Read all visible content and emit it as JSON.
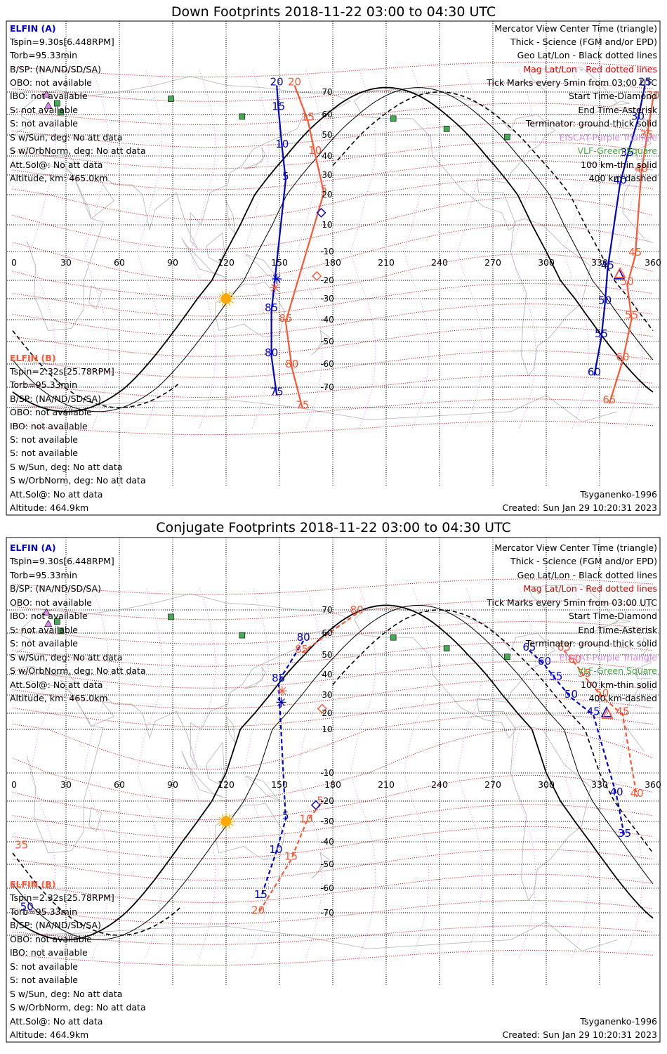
{
  "colors": {
    "elfin_a": "#0000cc",
    "elfin_b": "#ff5533",
    "mag_grid": "#dd0000",
    "eiscat": "#dd88ee",
    "vlf": "#44aa44",
    "coast": "#bbbbbb",
    "sun": "#ffaa00",
    "station_fill": "#44aa55"
  },
  "icons": [
    "sun-icon",
    "diamond-marker-icon",
    "asterisk-marker-icon",
    "triangle-marker-icon",
    "station-square-icon"
  ],
  "common": {
    "axis_x_ticks": [
      "0",
      "30",
      "60",
      "90",
      "120",
      "150",
      "180",
      "210",
      "240",
      "270",
      "300",
      "330",
      "360"
    ],
    "lat_labels": [
      "70",
      "60",
      "50",
      "40",
      "30",
      "20",
      "10",
      "-10",
      "-20",
      "-30",
      "-40",
      "-50",
      "-60",
      "-70"
    ],
    "legend": [
      {
        "text": "Mercator View Center Time (triangle)",
        "color": "#000000"
      },
      {
        "text": "Thick - Science (FGM and/or EPD)",
        "color": "#000000"
      },
      {
        "text": "Geo Lat/Lon - Black dotted lines",
        "color": "#000000"
      },
      {
        "text": "Mag Lat/Lon - Red dotted lines",
        "color": "#dd0000"
      },
      {
        "text": "Tick Marks every 5min from 03:00 UTC",
        "color": "#000000"
      },
      {
        "text": "Start Time-Diamond",
        "color": "#000000"
      },
      {
        "text": "End Time-Asterisk",
        "color": "#000000"
      },
      {
        "text": "Terminator: ground-thick solid",
        "color": "#000000"
      },
      {
        "text": "EISCAT-Purple Triangle",
        "color": "#dd88ee"
      },
      {
        "text": "VLF-Green Square",
        "color": "#44aa44"
      },
      {
        "text": "100 km-thin solid",
        "color": "#000000"
      },
      {
        "text": "400 km-dashed",
        "color": "#000000"
      }
    ],
    "elfin_a": {
      "name": "ELFIN (A)",
      "lines": [
        "Tspin=9.30s[6.448RPM]",
        "Torb=95.33min",
        "B/SP: (NA/ND/SD/SA)",
        "OBO: not available",
        "IBO: not available",
        "S: not available",
        "S: not available",
        "S w/Sun, deg: No att data",
        "S w/OrbNorm, deg: No att data",
        "Att.Sol@: No att data",
        "Altitude, km: 465.0km"
      ]
    },
    "elfin_b": {
      "name": "ELFIN (B)",
      "lines": [
        "Tspin=2.32s[25.78RPM]",
        "Torb=95.33min",
        "B/SP: (NA/ND/SD/SA)",
        "OBO: not available",
        "IBO: not available",
        "S: not available",
        "S: not available",
        "S w/Sun, deg: No att data",
        "S w/OrbNorm, deg: No att data",
        "Att.Sol@: No att data",
        "Altitude: 464.9km"
      ]
    },
    "model": "Tsyganenko-1996",
    "created": "Created: Sun Jan 29 10:20:31 2023"
  },
  "panels": [
    {
      "title": "Down Footprints 2018-11-22 03:00 to 04:30 UTC",
      "ticks_a": [
        {
          "t": "20",
          "lon": 148.5,
          "lat": 73.0
        },
        {
          "t": "15",
          "lon": 149.5,
          "lat": 62.0
        },
        {
          "t": "10",
          "lon": 151.5,
          "lat": 44.0
        },
        {
          "t": "5",
          "lon": 153.5,
          "lat": 27.5
        },
        {
          "t": "85",
          "lon": 145.5,
          "lat": -26.0
        },
        {
          "t": "80",
          "lon": 145.5,
          "lat": -46.5
        },
        {
          "t": "75",
          "lon": 148.5,
          "lat": -64.0
        },
        {
          "t": "25",
          "lon": 355.5,
          "lat": 73.0
        },
        {
          "t": "30",
          "lon": 351.5,
          "lat": 57.5
        },
        {
          "t": "35",
          "lon": 345.5,
          "lat": 40.0
        },
        {
          "t": "40",
          "lon": 341.5,
          "lat": 25.5
        },
        {
          "t": "45",
          "lon": 334.5,
          "lat": -6.0
        },
        {
          "t": "50",
          "lon": 333.0,
          "lat": -22.5
        },
        {
          "t": "55",
          "lon": 331.0,
          "lat": -38.0
        },
        {
          "t": "60",
          "lon": 327.0,
          "lat": -55.0
        }
      ],
      "ticks_b": [
        {
          "t": "20",
          "lon": 158.5,
          "lat": 73.0
        },
        {
          "t": "15",
          "lon": 166.0,
          "lat": 57.0
        },
        {
          "t": "10",
          "lon": 170.0,
          "lat": 41.0
        },
        {
          "t": "5",
          "lon": 175.0,
          "lat": 21.0
        },
        {
          "t": "85",
          "lon": 153.5,
          "lat": -31.0
        },
        {
          "t": "80",
          "lon": 157.0,
          "lat": -51.5
        },
        {
          "t": "75",
          "lon": 163.0,
          "lat": -70.5
        },
        {
          "t": "30",
          "lon": 360.0,
          "lat": 67.0
        },
        {
          "t": "35",
          "lon": 356.5,
          "lat": 48.5
        },
        {
          "t": "40",
          "lon": 353.5,
          "lat": 31.5
        },
        {
          "t": "45",
          "lon": 350.0,
          "lat": -1.5
        },
        {
          "t": "50",
          "lon": 345.5,
          "lat": -12.5
        },
        {
          "t": "55",
          "lon": 348.0,
          "lat": -29.5
        },
        {
          "t": "60",
          "lon": 343.0,
          "lat": -48.5
        },
        {
          "t": "65",
          "lon": 335.5,
          "lat": -68.0
        }
      ]
    },
    {
      "title": "Conjugate Footprints 2018-11-22 03:00 to 04:30 UTC",
      "ticks_a": [
        {
          "t": "80",
          "lon": 163.5,
          "lat": 56.5
        },
        {
          "t": "85",
          "lon": 149.5,
          "lat": 36.5
        },
        {
          "t": "5",
          "lon": 153.5,
          "lat": -19.0
        },
        {
          "t": "10",
          "lon": 148.0,
          "lat": -35.0
        },
        {
          "t": "15",
          "lon": 139.5,
          "lat": -54.0
        },
        {
          "t": "65",
          "lon": 290.5,
          "lat": 52.0
        },
        {
          "t": "60",
          "lon": 299.0,
          "lat": 45.0
        },
        {
          "t": "55",
          "lon": 305.5,
          "lat": 37.5
        },
        {
          "t": "50",
          "lon": 314.0,
          "lat": 28.5
        },
        {
          "t": "45",
          "lon": 326.5,
          "lat": 19.0
        },
        {
          "t": "40",
          "lon": 339.5,
          "lat": -8.0
        },
        {
          "t": "35",
          "lon": 344.0,
          "lat": -27.5
        },
        {
          "t": "50",
          "lon": 8.0,
          "lat": -59.0
        }
      ],
      "ticks_b": [
        {
          "t": "80",
          "lon": 193.5,
          "lat": 68.5
        },
        {
          "t": "85",
          "lon": 162.5,
          "lat": 51.0
        },
        {
          "t": "5",
          "lon": 173.0,
          "lat": -11.5
        },
        {
          "t": "10",
          "lon": 165.0,
          "lat": -20.5
        },
        {
          "t": "15",
          "lon": 156.5,
          "lat": -38.0
        },
        {
          "t": "20",
          "lon": 138.0,
          "lat": -60.5
        },
        {
          "t": "65",
          "lon": 310.0,
          "lat": 52.0
        },
        {
          "t": "60",
          "lon": 316.0,
          "lat": 46.0
        },
        {
          "t": "55",
          "lon": 321.5,
          "lat": 39.0
        },
        {
          "t": "50",
          "lon": 331.5,
          "lat": 29.0
        },
        {
          "t": "45",
          "lon": 343.0,
          "lat": 19.0
        },
        {
          "t": "40",
          "lon": 351.0,
          "lat": -8.5
        },
        {
          "t": "35",
          "lon": 5.0,
          "lat": -33.0
        }
      ]
    }
  ]
}
